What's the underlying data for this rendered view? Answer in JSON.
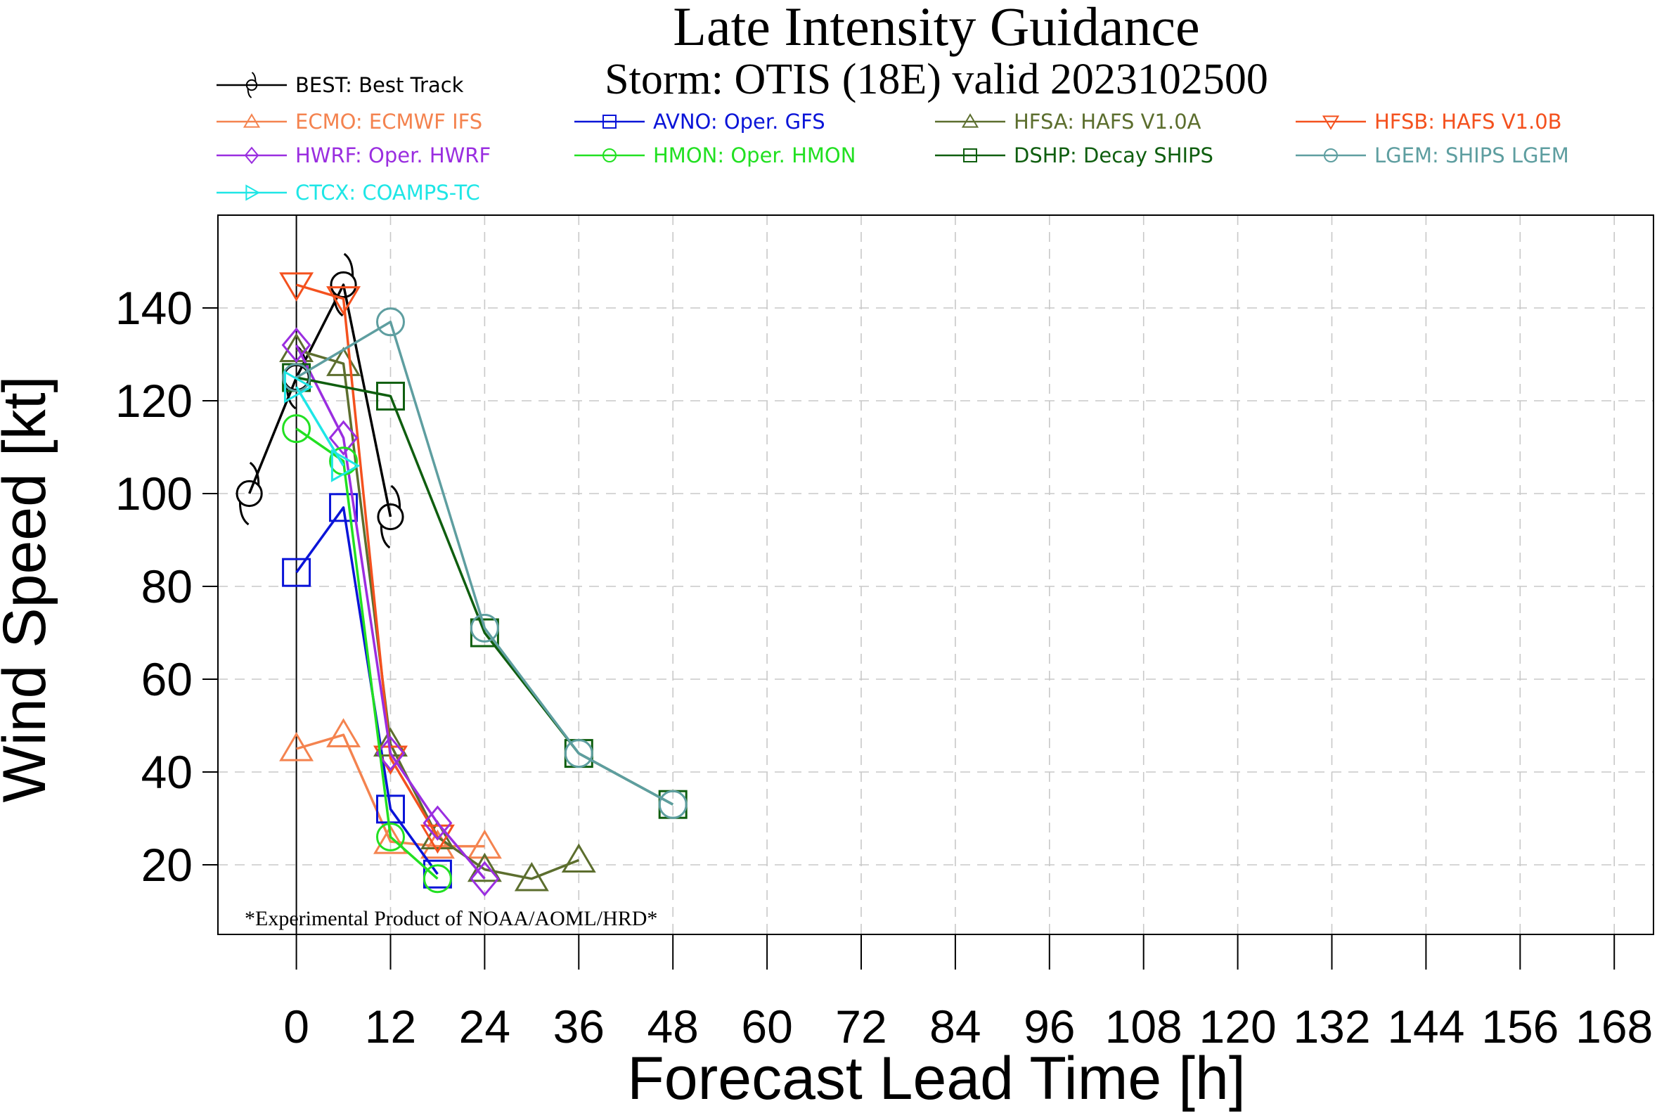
{
  "chart_data": {
    "type": "line",
    "title": "Late Intensity Guidance",
    "subtitle": "Storm: OTIS (18E) valid 2023102500",
    "xlabel": "Forecast Lead Time [h]",
    "ylabel": "Wind Speed [kt]",
    "note": "*Experimental Product of NOAA/AOML/HRD*",
    "xlim": [
      -10,
      173
    ],
    "ylim": [
      5,
      160
    ],
    "x_ticks": [
      0,
      12,
      24,
      36,
      48,
      60,
      72,
      84,
      96,
      108,
      120,
      132,
      144,
      156,
      168
    ],
    "y_ticks": [
      20,
      40,
      60,
      80,
      100,
      120,
      140
    ],
    "grid": true,
    "legend_position": "top",
    "series": [
      {
        "name": "BEST: Best Track",
        "color": "#000000",
        "marker": "hurricane",
        "x": [
          -6,
          0,
          6,
          12
        ],
        "y": [
          100,
          125,
          145,
          95
        ]
      },
      {
        "name": "ECMO: ECMWF IFS",
        "color": "#f4834f",
        "marker": "triangle-up",
        "x": [
          0,
          6,
          12,
          18,
          24
        ],
        "y": [
          45,
          48,
          25,
          24,
          24
        ]
      },
      {
        "name": "AVNO: Oper. GFS",
        "color": "#0a14d8",
        "marker": "square",
        "x": [
          0,
          6,
          12,
          18
        ],
        "y": [
          83,
          97,
          32,
          18
        ]
      },
      {
        "name": "HFSA: HAFS V1.0A",
        "color": "#5c6e2e",
        "marker": "triangle-up",
        "x": [
          0,
          6,
          12,
          18,
          24,
          30,
          36
        ],
        "y": [
          131,
          128,
          46,
          26,
          19,
          17,
          21
        ]
      },
      {
        "name": "HFSB: HAFS V1.0B",
        "color": "#f4511e",
        "marker": "triangle-down",
        "x": [
          0,
          6,
          12,
          18
        ],
        "y": [
          145,
          142,
          43,
          26
        ]
      },
      {
        "name": "HWRF: Oper. HWRF",
        "color": "#9a2ee0",
        "marker": "diamond",
        "x": [
          0,
          6,
          12,
          18,
          24
        ],
        "y": [
          132,
          112,
          44,
          29,
          17
        ]
      },
      {
        "name": "HMON: Oper. HMON",
        "color": "#22e022",
        "marker": "circle",
        "x": [
          0,
          6,
          12,
          18
        ],
        "y": [
          114,
          107,
          26,
          17
        ]
      },
      {
        "name": "DSHP: Decay SHIPS",
        "color": "#0f5e0f",
        "marker": "square",
        "x": [
          0,
          12,
          24,
          36,
          48
        ],
        "y": [
          125,
          121,
          70,
          44,
          33
        ]
      },
      {
        "name": "LGEM: SHIPS LGEM",
        "color": "#5e9ea0",
        "marker": "circle",
        "x": [
          0,
          12,
          24,
          36,
          48
        ],
        "y": [
          125,
          137,
          71,
          44,
          33
        ]
      },
      {
        "name": "CTCX: COAMPS-TC",
        "color": "#1ee6e6",
        "marker": "triangle-right",
        "x": [
          0,
          6
        ],
        "y": [
          123,
          106
        ]
      }
    ]
  }
}
